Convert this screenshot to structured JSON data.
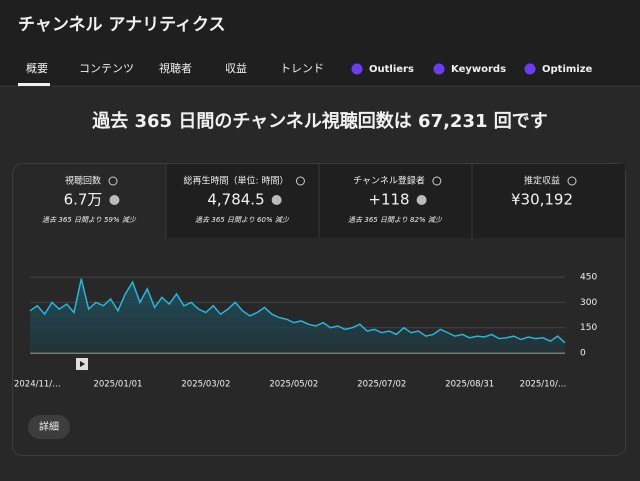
{
  "header": {
    "title": "チャンネル アナリティクス"
  },
  "tabs": [
    "概要",
    "コンテンツ",
    "視聴者",
    "収益",
    "トレンド",
    "Outliers",
    "Keywords",
    "Optimize"
  ],
  "headline": "過去 365 日間のチャンネル視聴回数は 67,231 回です",
  "metrics": [
    {
      "label": "視聴回数",
      "value": "6.7万",
      "note": "過去 365 日間より 59% 減少"
    },
    {
      "label": "総再生時間（単位: 時間）",
      "value": "4,784.5",
      "note": "過去 365 日間より 60% 減少"
    },
    {
      "label": "チャンネル登録者",
      "value": "+118",
      "note": "過去 365 日間より 82% 減少"
    },
    {
      "label": "推定収益",
      "value": "¥30,192"
    }
  ],
  "chart_data": {
    "type": "area",
    "color": "#2bb5d9",
    "categories": [
      null,
      "2024/11/…",
      null,
      null,
      null,
      null,
      null,
      null,
      null,
      null,
      null,
      null,
      "2025/01/01",
      null,
      null,
      null,
      null,
      null,
      null,
      null,
      null,
      null,
      null,
      null,
      "2025/03/02",
      null,
      null,
      null,
      null,
      null,
      null,
      null,
      null,
      null,
      null,
      null,
      "2025/05/02",
      null,
      null,
      null,
      null,
      null,
      null,
      null,
      null,
      null,
      null,
      null,
      "2025/07/02",
      null,
      null,
      null,
      null,
      null,
      null,
      null,
      null,
      null,
      null,
      null,
      "2025/08/31",
      null,
      null,
      null,
      null,
      null,
      null,
      null,
      null,
      null,
      "2025/10/…",
      null,
      null,
      null
    ],
    "values": [
      250,
      280,
      230,
      300,
      260,
      290,
      240,
      440,
      260,
      300,
      280,
      320,
      250,
      350,
      420,
      300,
      380,
      270,
      330,
      290,
      350,
      280,
      300,
      260,
      240,
      280,
      230,
      260,
      300,
      250,
      220,
      240,
      270,
      230,
      210,
      200,
      180,
      190,
      170,
      160,
      180,
      150,
      160,
      140,
      150,
      170,
      130,
      140,
      120,
      130,
      110,
      150,
      120,
      130,
      100,
      110,
      140,
      120,
      100,
      110,
      90,
      100,
      95,
      110,
      85,
      90,
      100,
      80,
      95,
      85,
      90,
      70,
      100,
      60
    ],
    "ylim": [
      0,
      480
    ],
    "yticks": [
      0,
      150,
      300,
      450
    ],
    "grid": true
  },
  "button": "詳細"
}
